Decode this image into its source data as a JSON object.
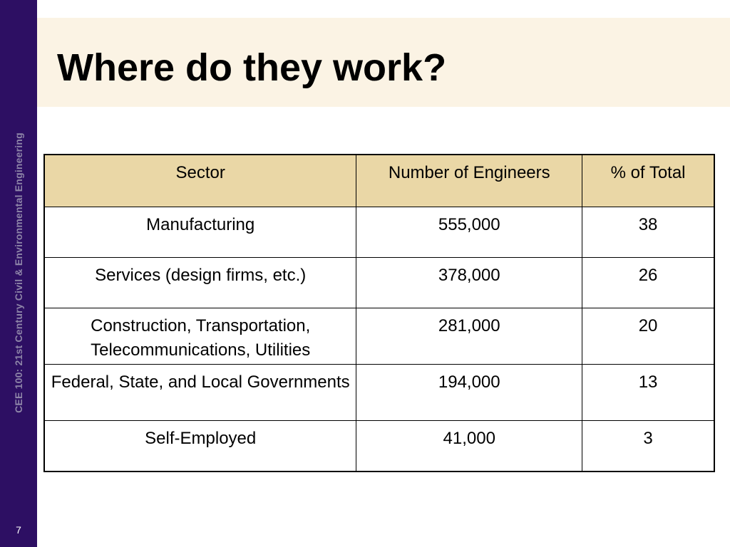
{
  "sidebar": {
    "caption": "CEE 100: 21st Century Civil & Environmental Engineering",
    "slide_number": "7"
  },
  "slide": {
    "title": "Where do they work?"
  },
  "table": {
    "headers": [
      "Sector",
      "Number of Engineers",
      "% of Total"
    ],
    "rows": [
      [
        "Manufacturing",
        "555,000",
        "38"
      ],
      [
        "Services (design firms, etc.)",
        "378,000",
        "26"
      ],
      [
        "Construction, Transportation, Telecommunications, Utilities",
        "281,000",
        "20"
      ],
      [
        "Federal, State, and Local Governments",
        "194,000",
        "13"
      ],
      [
        "Self-Employed",
        "41,000",
        "3"
      ]
    ]
  },
  "colors": {
    "sidebar": "#2d0f63",
    "title_band": "#fbf3e4",
    "header_fill": "#ead7a6"
  }
}
